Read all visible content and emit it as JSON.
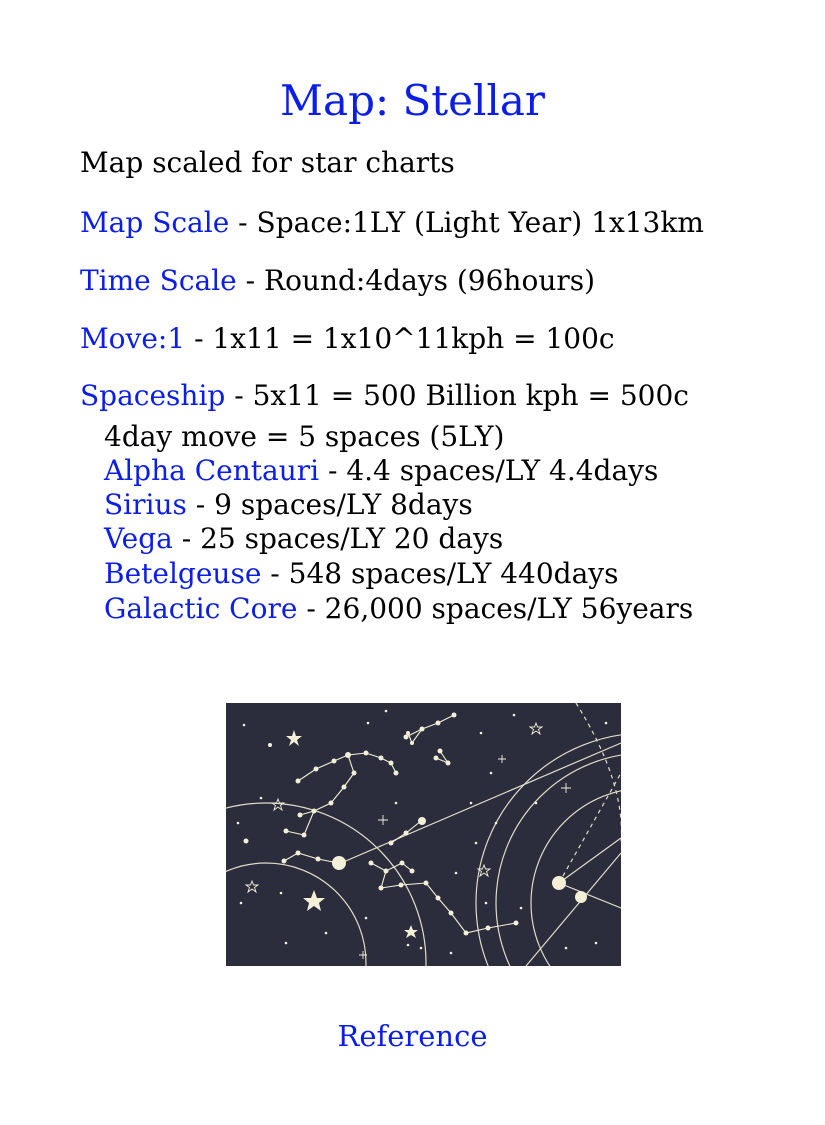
{
  "title": "Map: Stellar",
  "intro": "Map scaled for star charts",
  "map_scale": {
    "label": "Map Scale",
    "text": " - Space:1LY (Light Year) 1x13km"
  },
  "time_scale": {
    "label": "Time Scale",
    "text": " - Round:4days (96hours)"
  },
  "move": {
    "label": "Move:1",
    "text": " - 1x11 = 1x10^11kph = 100c"
  },
  "spaceship": {
    "label": "Spaceship",
    "text": " - 5x11 = 500 Billion kph = 500c",
    "move_note": "4day move = 5 spaces (5LY)",
    "destinations": [
      {
        "name": "Alpha Centauri ",
        "detail": " - 4.4 spaces/LY 4.4days"
      },
      {
        "name": "Sirius",
        "detail": " - 9 spaces/LY 8days"
      },
      {
        "name": "Vega",
        "detail": " - 25 spaces/LY 20 days"
      },
      {
        "name": "Betelgeuse",
        "detail": " - 548 spaces/LY 440days"
      },
      {
        "name": "Galactic Core",
        "detail": " - 26,000 spaces/LY 56years"
      }
    ]
  },
  "image": {
    "icon": "star-chart-image",
    "background": "#2b2d3c",
    "ink": "#f4f0d8"
  },
  "reference_link": "Reference",
  "colors": {
    "accent": "#0a1ee8",
    "text": "#000000"
  }
}
